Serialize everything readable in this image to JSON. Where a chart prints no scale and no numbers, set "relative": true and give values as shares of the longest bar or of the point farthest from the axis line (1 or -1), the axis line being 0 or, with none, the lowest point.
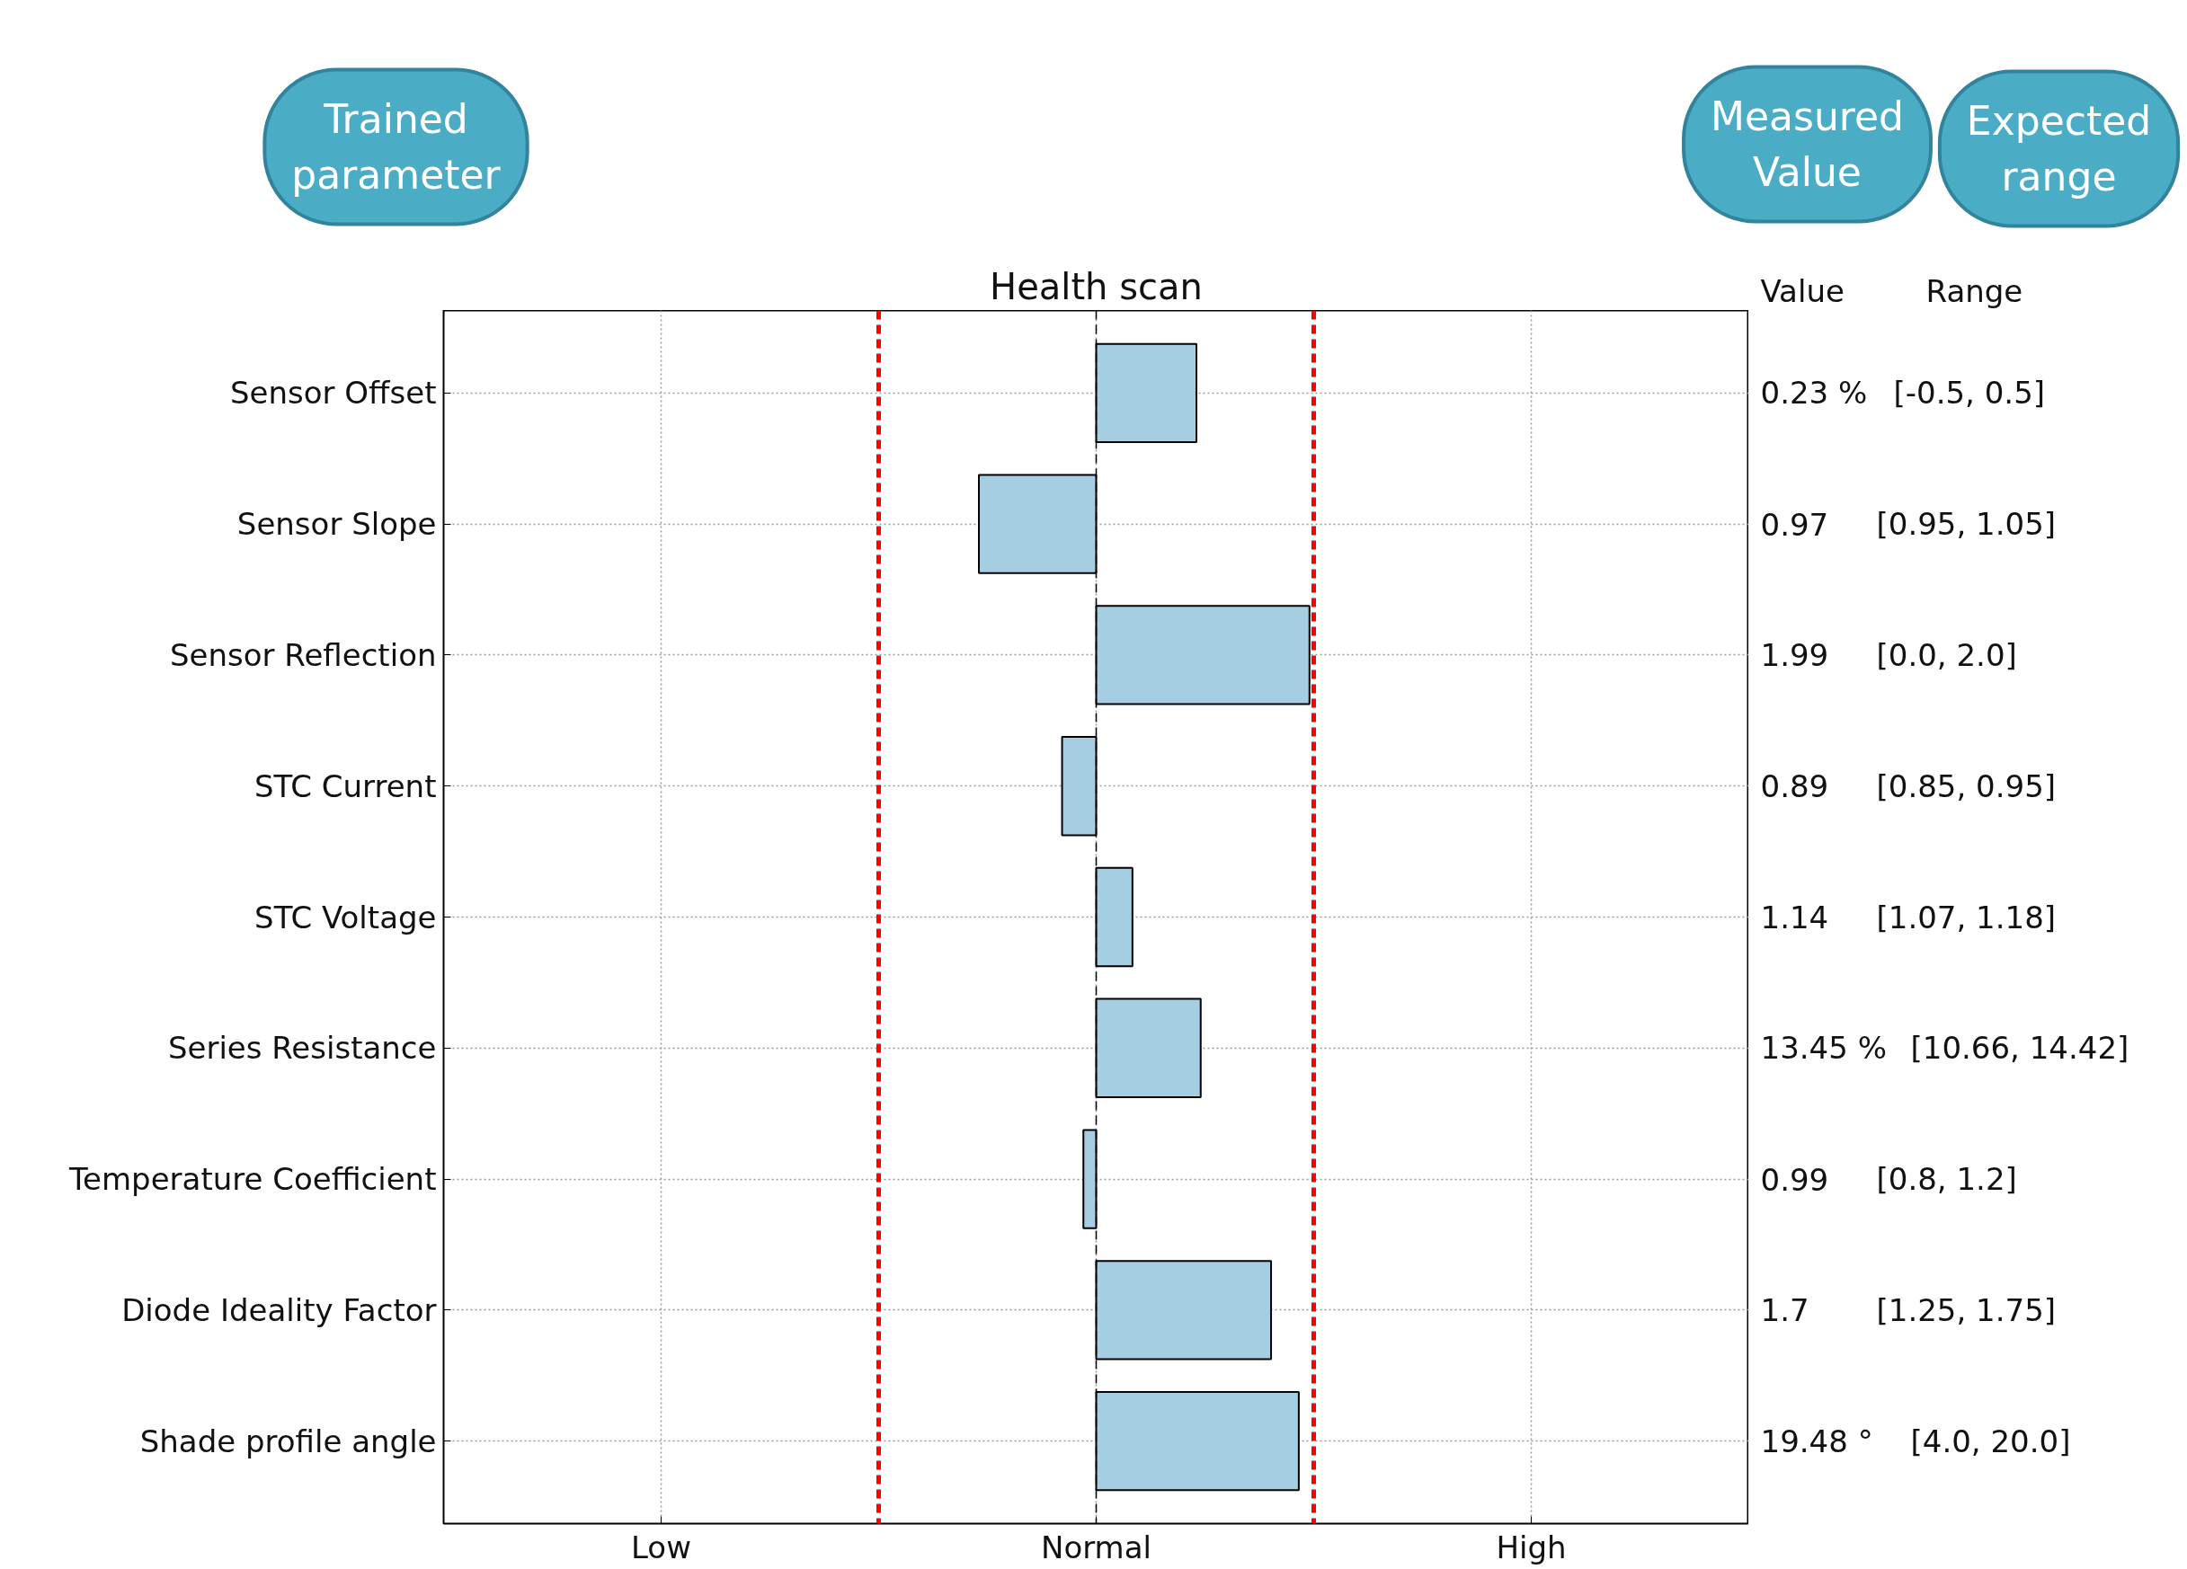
{
  "chart_data": {
    "type": "bar",
    "orientation": "horizontal",
    "relative": true,
    "title": "Health scan",
    "categories": [
      "Sensor Offset",
      "Sensor Slope",
      "Sensor Reflection",
      "STC Current",
      "STC Voltage",
      "Series Resistance",
      "Temperature Coefficient",
      "Diode Ideality Factor",
      "Shade profile angle"
    ],
    "values": [
      0.47,
      -0.55,
      1,
      -0.16,
      0.17,
      0.49,
      -0.06,
      0.82,
      0.95
    ],
    "color": "#a6cee3",
    "grid": true,
    "ref_lines": [
      {
        "axis": "x",
        "value": -1.02,
        "color": "#ff0000",
        "line_style": "dashed"
      },
      {
        "axis": "x",
        "value": 1.02,
        "color": "#ff0000",
        "line_style": "dashed"
      },
      {
        "axis": "x",
        "value": 0,
        "color": "#000000",
        "line_style": "dashed"
      }
    ],
    "annotations": [
      "Trained parameter",
      "Measured Value",
      "Expected range",
      "Value",
      "Range",
      "Low",
      "Normal",
      "High",
      "0.23 %",
      "[-0.5, 0.5]",
      "0.97",
      "[0.95, 1.05]",
      "1.99",
      "[0.0, 2.0]",
      "0.89",
      "[0.85, 0.95]",
      "1.14",
      "[1.07, 1.18]",
      "13.45 %",
      "[10.66, 14.42]",
      "0.99",
      "[0.8, 1.2]",
      "1.7",
      "[1.25, 1.75]",
      "19.48 °",
      "[4.0, 20.0]"
    ]
  }
}
